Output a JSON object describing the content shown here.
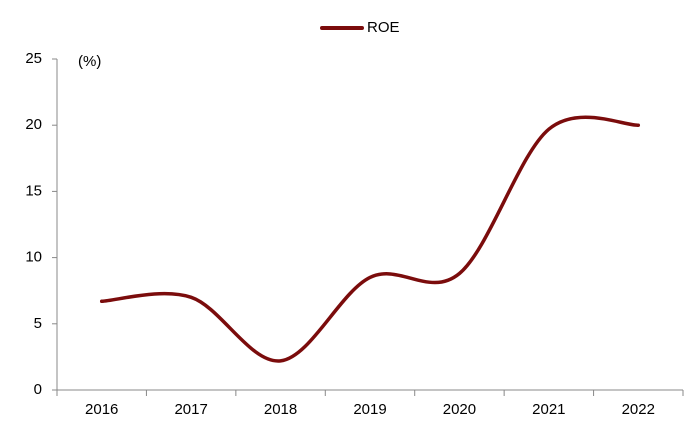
{
  "chart_data": {
    "type": "line",
    "y_unit_label": "(%)",
    "categories": [
      "2016",
      "2017",
      "2018",
      "2019",
      "2020",
      "2021",
      "2022"
    ],
    "series": [
      {
        "name": "ROE",
        "color": "#7b0c0c",
        "values": [
          6.7,
          7.0,
          2.2,
          8.5,
          8.8,
          19.7,
          20.0
        ]
      }
    ],
    "ylim": [
      0,
      25
    ],
    "yticks": [
      0,
      5,
      10,
      15,
      20,
      25
    ],
    "grid": false,
    "legend": "top"
  }
}
